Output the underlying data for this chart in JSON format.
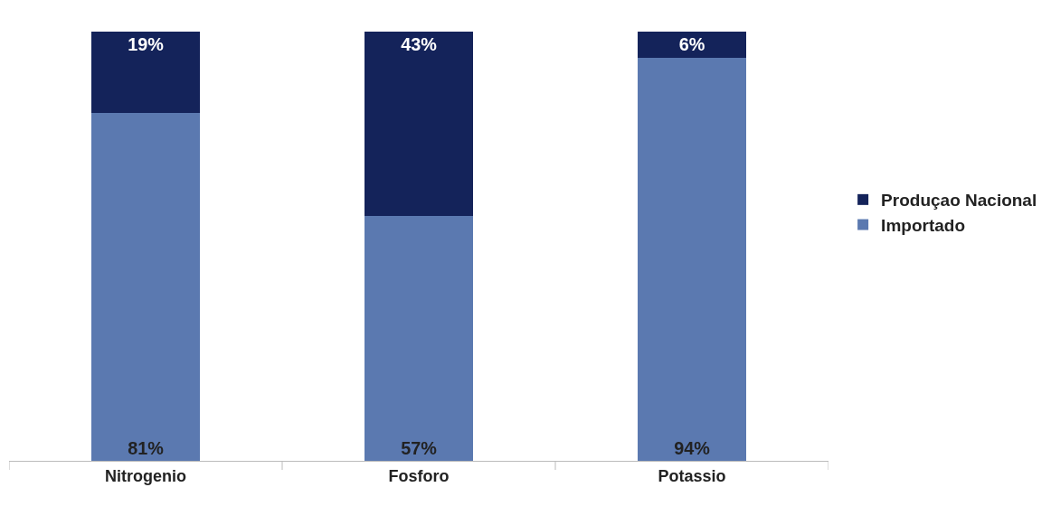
{
  "chart_data": {
    "type": "bar",
    "stacked": true,
    "categories": [
      "Nitrogenio",
      "Fosforo",
      "Potassio"
    ],
    "series": [
      {
        "name": "Importado",
        "color": "#5b79b0",
        "values": [
          81,
          57,
          94
        ],
        "value_labels": [
          "81%",
          "57%",
          "94%"
        ]
      },
      {
        "name": "Produçao Nacional",
        "color": "#14235a",
        "values": [
          19,
          43,
          6
        ],
        "value_labels": [
          "19%",
          "43%",
          "6%"
        ]
      }
    ],
    "legend": "right"
  }
}
